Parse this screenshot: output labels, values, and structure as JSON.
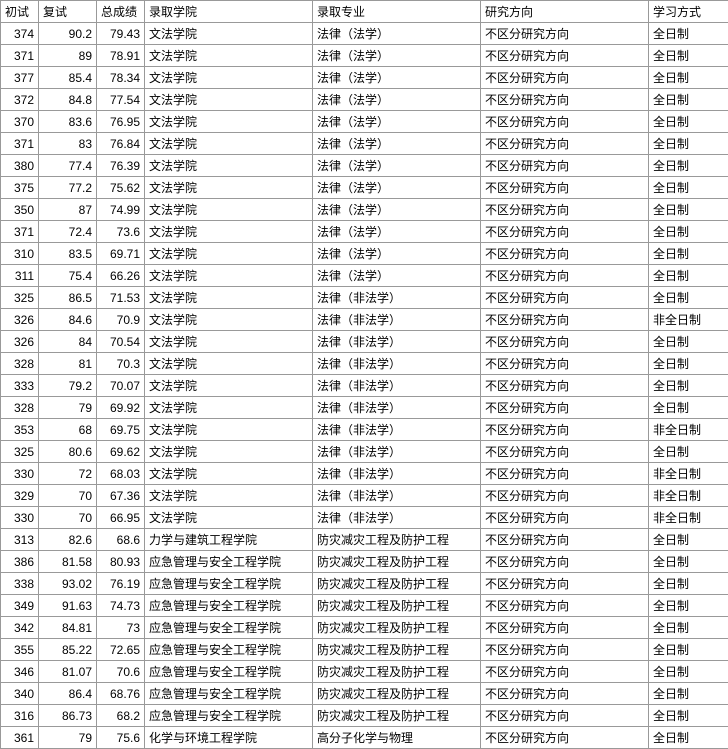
{
  "columns": [
    "初试",
    "复试",
    "总成绩",
    "录取学院",
    "录取专业",
    "研究方向",
    "学习方式"
  ],
  "col_classes": [
    "col-chushi",
    "col-fushi",
    "col-zong",
    "col-xueyuan",
    "col-zhuanye",
    "col-fangxiang",
    "col-fangshi"
  ],
  "rows": [
    [
      "374",
      "90.2",
      "79.43",
      "文法学院",
      "法律（法学）",
      "不区分研究方向",
      "全日制"
    ],
    [
      "371",
      "89",
      "78.91",
      "文法学院",
      "法律（法学）",
      "不区分研究方向",
      "全日制"
    ],
    [
      "377",
      "85.4",
      "78.34",
      "文法学院",
      "法律（法学）",
      "不区分研究方向",
      "全日制"
    ],
    [
      "372",
      "84.8",
      "77.54",
      "文法学院",
      "法律（法学）",
      "不区分研究方向",
      "全日制"
    ],
    [
      "370",
      "83.6",
      "76.95",
      "文法学院",
      "法律（法学）",
      "不区分研究方向",
      "全日制"
    ],
    [
      "371",
      "83",
      "76.84",
      "文法学院",
      "法律（法学）",
      "不区分研究方向",
      "全日制"
    ],
    [
      "380",
      "77.4",
      "76.39",
      "文法学院",
      "法律（法学）",
      "不区分研究方向",
      "全日制"
    ],
    [
      "375",
      "77.2",
      "75.62",
      "文法学院",
      "法律（法学）",
      "不区分研究方向",
      "全日制"
    ],
    [
      "350",
      "87",
      "74.99",
      "文法学院",
      "法律（法学）",
      "不区分研究方向",
      "全日制"
    ],
    [
      "371",
      "72.4",
      "73.6",
      "文法学院",
      "法律（法学）",
      "不区分研究方向",
      "全日制"
    ],
    [
      "310",
      "83.5",
      "69.71",
      "文法学院",
      "法律（法学）",
      "不区分研究方向",
      "全日制"
    ],
    [
      "311",
      "75.4",
      "66.26",
      "文法学院",
      "法律（法学）",
      "不区分研究方向",
      "全日制"
    ],
    [
      "325",
      "86.5",
      "71.53",
      "文法学院",
      "法律（非法学）",
      "不区分研究方向",
      "全日制"
    ],
    [
      "326",
      "84.6",
      "70.9",
      "文法学院",
      "法律（非法学）",
      "不区分研究方向",
      "非全日制"
    ],
    [
      "326",
      "84",
      "70.54",
      "文法学院",
      "法律（非法学）",
      "不区分研究方向",
      "全日制"
    ],
    [
      "328",
      "81",
      "70.3",
      "文法学院",
      "法律（非法学）",
      "不区分研究方向",
      "全日制"
    ],
    [
      "333",
      "79.2",
      "70.07",
      "文法学院",
      "法律（非法学）",
      "不区分研究方向",
      "全日制"
    ],
    [
      "328",
      "79",
      "69.92",
      "文法学院",
      "法律（非法学）",
      "不区分研究方向",
      "全日制"
    ],
    [
      "353",
      "68",
      "69.75",
      "文法学院",
      "法律（非法学）",
      "不区分研究方向",
      "非全日制"
    ],
    [
      "325",
      "80.6",
      "69.62",
      "文法学院",
      "法律（非法学）",
      "不区分研究方向",
      "全日制"
    ],
    [
      "330",
      "72",
      "68.03",
      "文法学院",
      "法律（非法学）",
      "不区分研究方向",
      "非全日制"
    ],
    [
      "329",
      "70",
      "67.36",
      "文法学院",
      "法律（非法学）",
      "不区分研究方向",
      "非全日制"
    ],
    [
      "330",
      "70",
      "66.95",
      "文法学院",
      "法律（非法学）",
      "不区分研究方向",
      "非全日制"
    ],
    [
      "313",
      "82.6",
      "68.6",
      "力学与建筑工程学院",
      "防灾减灾工程及防护工程",
      "不区分研究方向",
      "全日制"
    ],
    [
      "386",
      "81.58",
      "80.93",
      "应急管理与安全工程学院",
      "防灾减灾工程及防护工程",
      "不区分研究方向",
      "全日制"
    ],
    [
      "338",
      "93.02",
      "76.19",
      "应急管理与安全工程学院",
      "防灾减灾工程及防护工程",
      "不区分研究方向",
      "全日制"
    ],
    [
      "349",
      "91.63",
      "74.73",
      "应急管理与安全工程学院",
      "防灾减灾工程及防护工程",
      "不区分研究方向",
      "全日制"
    ],
    [
      "342",
      "84.81",
      "73",
      "应急管理与安全工程学院",
      "防灾减灾工程及防护工程",
      "不区分研究方向",
      "全日制"
    ],
    [
      "355",
      "85.22",
      "72.65",
      "应急管理与安全工程学院",
      "防灾减灾工程及防护工程",
      "不区分研究方向",
      "全日制"
    ],
    [
      "346",
      "81.07",
      "70.6",
      "应急管理与安全工程学院",
      "防灾减灾工程及防护工程",
      "不区分研究方向",
      "全日制"
    ],
    [
      "340",
      "86.4",
      "68.76",
      "应急管理与安全工程学院",
      "防灾减灾工程及防护工程",
      "不区分研究方向",
      "全日制"
    ],
    [
      "316",
      "86.73",
      "68.2",
      "应急管理与安全工程学院",
      "防灾减灾工程及防护工程",
      "不区分研究方向",
      "全日制"
    ],
    [
      "361",
      "79",
      "75.6",
      "化学与环境工程学院",
      "高分子化学与物理",
      "不区分研究方向",
      "全日制"
    ]
  ]
}
